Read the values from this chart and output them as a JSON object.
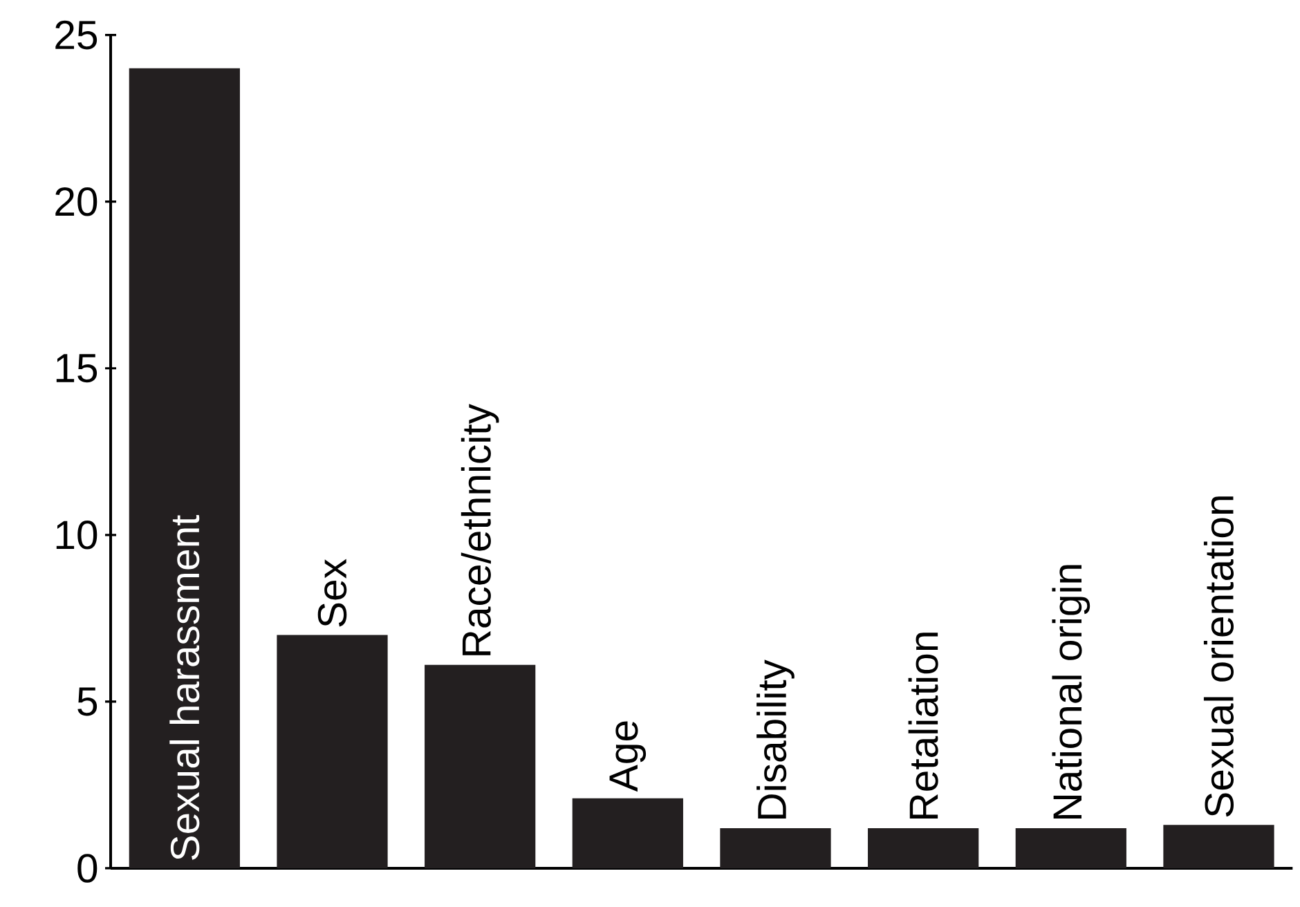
{
  "chart_data": {
    "type": "bar",
    "categories": [
      "Sexual harassment",
      "Sex",
      "Race/ethnicity",
      "Age",
      "Disability",
      "Retaliation",
      "National origin",
      "Sexual orientation"
    ],
    "values": [
      24,
      7,
      6.1,
      2.1,
      1.2,
      1.2,
      1.2,
      1.3
    ],
    "color": "#231f20",
    "ylim": [
      0,
      25
    ],
    "yticks": [
      0,
      5,
      10,
      15,
      20,
      25
    ]
  }
}
